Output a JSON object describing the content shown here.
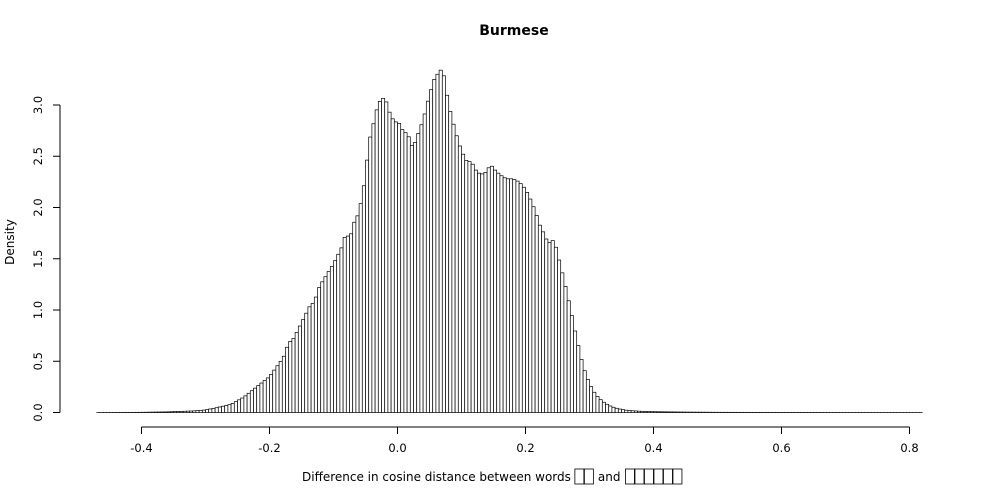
{
  "chart_data": {
    "type": "bar",
    "title": "Burmese",
    "xlabel": "Difference in cosine distance between words",
    "xlabel_and": "and",
    "xlabel_word1_glyph_count": 2,
    "xlabel_word2_glyph_count": 6,
    "ylabel": "Density",
    "xlim": [
      -0.475,
      0.84
    ],
    "ylim": [
      0,
      3.4
    ],
    "x_ticks": [
      "-0.4",
      "-0.2",
      "0.0",
      "0.2",
      "0.4",
      "0.6",
      "0.8"
    ],
    "y_ticks": [
      "0.0",
      "0.5",
      "1.0",
      "1.5",
      "2.0",
      "2.5",
      "3.0"
    ],
    "bin_width": 0.005,
    "bin_start": -0.47,
    "grid": false,
    "anchors": [
      [
        -0.47,
        0.0
      ],
      [
        -0.4,
        0.002
      ],
      [
        -0.36,
        0.006
      ],
      [
        -0.32,
        0.015
      ],
      [
        -0.3,
        0.025
      ],
      [
        -0.28,
        0.05
      ],
      [
        -0.26,
        0.08
      ],
      [
        -0.24,
        0.15
      ],
      [
        -0.22,
        0.25
      ],
      [
        -0.2,
        0.35
      ],
      [
        -0.18,
        0.52
      ],
      [
        -0.16,
        0.75
      ],
      [
        -0.14,
        1.0
      ],
      [
        -0.12,
        1.25
      ],
      [
        -0.1,
        1.45
      ],
      [
        -0.08,
        1.7
      ],
      [
        -0.06,
        1.95
      ],
      [
        -0.05,
        2.3
      ],
      [
        -0.04,
        2.75
      ],
      [
        -0.03,
        3.02
      ],
      [
        -0.02,
        3.08
      ],
      [
        -0.01,
        2.88
      ],
      [
        0.0,
        2.82
      ],
      [
        0.01,
        2.7
      ],
      [
        0.02,
        2.62
      ],
      [
        0.03,
        2.68
      ],
      [
        0.04,
        2.85
      ],
      [
        0.05,
        3.1
      ],
      [
        0.06,
        3.3
      ],
      [
        0.07,
        3.38
      ],
      [
        0.08,
        3.0
      ],
      [
        0.09,
        2.75
      ],
      [
        0.1,
        2.55
      ],
      [
        0.11,
        2.43
      ],
      [
        0.12,
        2.38
      ],
      [
        0.13,
        2.32
      ],
      [
        0.14,
        2.35
      ],
      [
        0.15,
        2.38
      ],
      [
        0.16,
        2.32
      ],
      [
        0.17,
        2.28
      ],
      [
        0.18,
        2.28
      ],
      [
        0.19,
        2.25
      ],
      [
        0.2,
        2.18
      ],
      [
        0.21,
        2.05
      ],
      [
        0.22,
        1.88
      ],
      [
        0.23,
        1.75
      ],
      [
        0.24,
        1.68
      ],
      [
        0.25,
        1.55
      ],
      [
        0.26,
        1.3
      ],
      [
        0.27,
        1.02
      ],
      [
        0.28,
        0.72
      ],
      [
        0.29,
        0.45
      ],
      [
        0.3,
        0.28
      ],
      [
        0.31,
        0.17
      ],
      [
        0.32,
        0.11
      ],
      [
        0.33,
        0.07
      ],
      [
        0.34,
        0.045
      ],
      [
        0.35,
        0.03
      ],
      [
        0.36,
        0.02
      ],
      [
        0.38,
        0.012
      ],
      [
        0.4,
        0.008
      ],
      [
        0.45,
        0.004
      ],
      [
        0.5,
        0.002
      ],
      [
        0.6,
        0.001
      ],
      [
        0.7,
        0.0005
      ],
      [
        0.835,
        0.0
      ]
    ],
    "bumps": [
      [
        -0.17,
        0.03
      ],
      [
        -0.13,
        -0.03
      ],
      [
        -0.08,
        0.04
      ],
      [
        -0.075,
        -0.05
      ],
      [
        -0.045,
        0.05
      ],
      [
        0.005,
        0.03
      ],
      [
        0.015,
        0.05
      ],
      [
        0.025,
        -0.03
      ],
      [
        0.065,
        -0.02
      ],
      [
        0.115,
        0.03
      ],
      [
        0.145,
        0.03
      ],
      [
        0.225,
        -0.02
      ],
      [
        0.235,
        -0.04
      ],
      [
        0.245,
        0.03
      ]
    ]
  }
}
